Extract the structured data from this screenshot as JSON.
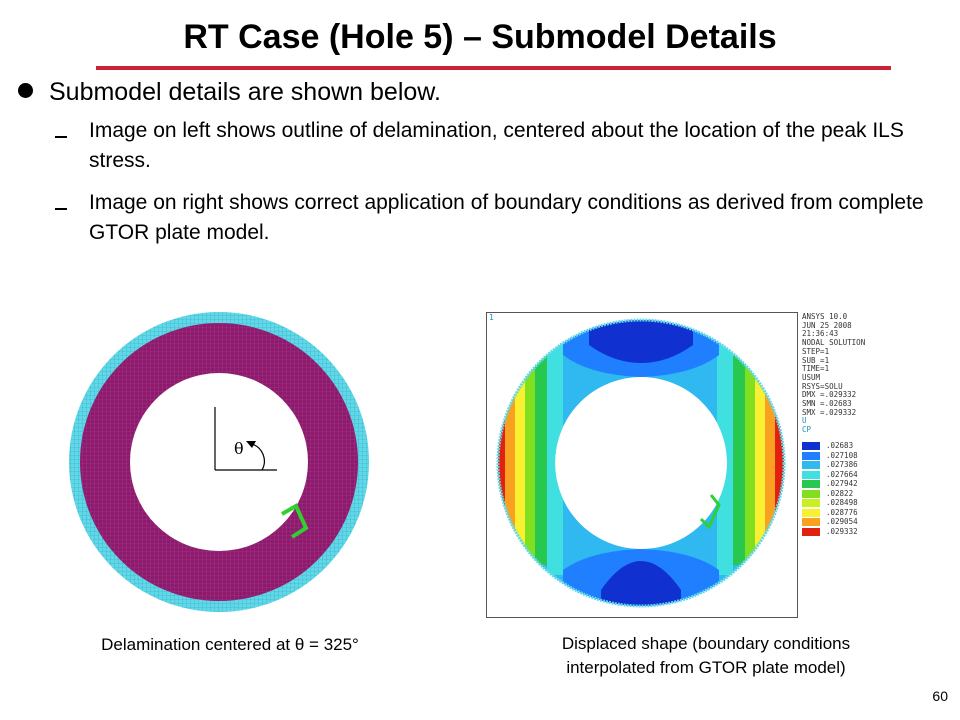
{
  "title": "RT Case (Hole 5) – Submodel Details",
  "bullets": {
    "main": "Submodel details are shown below.",
    "sub": [
      "Image on left shows outline of delamination, centered about the location of the peak ILS stress.",
      "Image on right shows correct application of boundary conditions as derived from complete GTOR plate model."
    ]
  },
  "left_figure": {
    "theta_symbol": "θ",
    "caption": "Delamination centered at θ = 325°"
  },
  "right_figure": {
    "corner_label": "1",
    "info_lines": [
      "ANSYS 10.0",
      "JUN 25 2008",
      "21:36:43",
      "NODAL SOLUTION",
      "STEP=1",
      "SUB =1",
      "TIME=1",
      "USUM",
      "RSYS=SOLU",
      "DMX =.029332",
      "SMN =.02683",
      "SMX =.029332",
      "U",
      "CP"
    ],
    "legend": [
      {
        "color": "#1030d0",
        "label": ".02683"
      },
      {
        "color": "#1f7fff",
        "label": ".027108"
      },
      {
        "color": "#30b8f0",
        "label": ".027386"
      },
      {
        "color": "#40e0e0",
        "label": ".027664"
      },
      {
        "color": "#28c850",
        "label": ".027942"
      },
      {
        "color": "#80e020",
        "label": ".02822"
      },
      {
        "color": "#c8f020",
        "label": ".028498"
      },
      {
        "color": "#f8f030",
        "label": ".028776"
      },
      {
        "color": "#f8a020",
        "label": ".029054"
      },
      {
        "color": "#e02010",
        "label": ".029332"
      }
    ],
    "caption_line1": "Displaced shape (boundary conditions",
    "caption_line2": "interpolated from GTOR plate model)"
  },
  "colors": {
    "title_rule": "#cc2233",
    "ring_magenta": "#8e1a6e",
    "mesh_cyan": "#60d8e8",
    "marker_green": "#30d030"
  },
  "page_number": "60"
}
